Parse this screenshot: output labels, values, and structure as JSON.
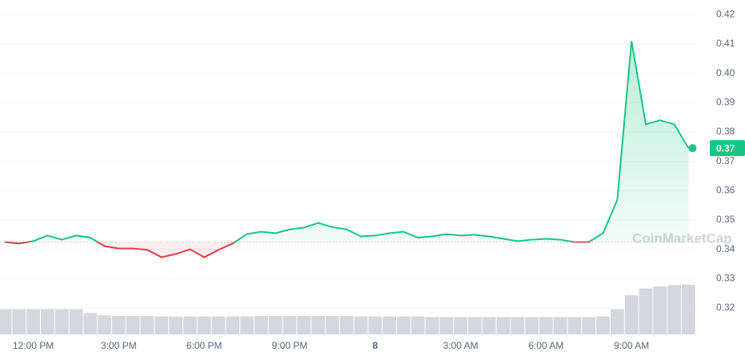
{
  "chart_data": {
    "type": "line",
    "categories": [
      null,
      null,
      "12:00 PM",
      null,
      null,
      null,
      null,
      null,
      "3:00 PM",
      null,
      null,
      null,
      null,
      null,
      "6:00 PM",
      null,
      null,
      null,
      null,
      null,
      "9:00 PM",
      null,
      null,
      null,
      null,
      null,
      "8",
      null,
      null,
      null,
      null,
      null,
      "3:00 AM",
      null,
      null,
      null,
      null,
      null,
      "6:00 AM",
      null,
      null,
      null,
      null,
      null,
      "9:00 AM",
      null,
      null,
      null,
      null
    ],
    "series": [
      {
        "values": [
          0.3425,
          0.342,
          0.3428,
          0.3447,
          0.3433,
          0.3447,
          0.344,
          0.3411,
          0.3403,
          0.3403,
          0.3398,
          0.3373,
          0.3384,
          0.34,
          0.3373,
          0.3398,
          0.342,
          0.3452,
          0.346,
          0.3455,
          0.3468,
          0.3474,
          0.349,
          0.3476,
          0.3468,
          0.3444,
          0.3447,
          0.3455,
          0.346,
          0.344,
          0.3444,
          0.3452,
          0.3447,
          0.345,
          0.3444,
          0.3436,
          0.3428,
          0.3433,
          0.3436,
          0.3433,
          0.3425,
          0.3425,
          0.3455,
          0.3569,
          0.411,
          0.3826,
          0.384,
          0.3826,
          0.3745
        ],
        "color": "#16c784",
        "below_color": "#ea3943"
      }
    ],
    "reference_line": 0.3425,
    "volume": {
      "color": "#d4d7dd",
      "ylim": [
        0,
        100
      ],
      "values": [
        45,
        45,
        45,
        45,
        45,
        45,
        38,
        34,
        33,
        33,
        33,
        32,
        32,
        32,
        32,
        32,
        32,
        32,
        33,
        33,
        33,
        33,
        33,
        33,
        33,
        32,
        32,
        32,
        32,
        32,
        31,
        31,
        31,
        31,
        31,
        31,
        31,
        31,
        31,
        31,
        31,
        31,
        32,
        45,
        70,
        82,
        86,
        88,
        89
      ]
    },
    "ylim": [
      0.311,
      0.425
    ],
    "yticks": [
      0.32,
      0.33,
      0.34,
      0.35,
      0.36,
      0.37,
      0.38,
      0.39,
      {
        "value": 0.4,
        "label": "0.40"
      },
      0.41,
      0.42
    ],
    "grid": true,
    "price_tag": {
      "value": 0.3745,
      "label": "0.37"
    },
    "watermark": "CoinMarketCap"
  }
}
